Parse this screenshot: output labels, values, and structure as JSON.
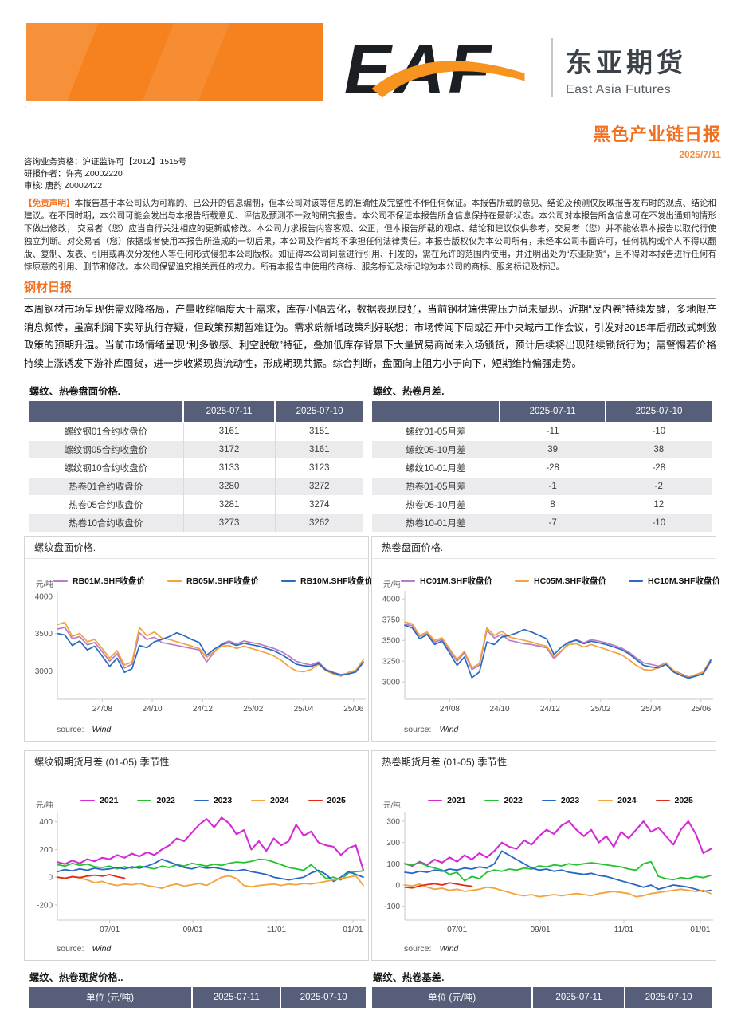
{
  "labels": {
    "source": "source:",
    "source_value": "Wind"
  },
  "colors": {
    "accent_orange": "#f26f20",
    "header_block_orange": "#f5821f",
    "table_header": "#565e7a",
    "rb01": "#b77cc9",
    "rb05": "#f2a33c",
    "rb10": "#2a6bbf",
    "y2021": "#d42bd4",
    "y2022": "#22c32e",
    "y2023": "#2668c5",
    "y2024": "#f2a33c",
    "y2025": "#e82817"
  },
  "header": {
    "logo_text": "EAF",
    "brand_cn": "东亚期货",
    "brand_en": "East Asia Futures",
    "stray_dot": ".",
    "report_title": "黑色产业链日报",
    "report_date": "2025/7/11"
  },
  "meta": {
    "qualification": "咨询业务资格：沪证监许可【2012】1515号",
    "author": "研报作者：许亮 Z0002220",
    "reviewer": "审核: 唐韵 Z0002422"
  },
  "disclaimer": {
    "label": "【免责声明】",
    "text": "本报告基于本公司认为可靠的、已公开的信息编制，但本公司对该等信息的准确性及完整性不作任何保证。本报告所载的意见、结论及预测仅反映报告发布时的观点、结论和建议。在不同时期，本公司可能会发出与本报告所载意见、评估及预测不一致的研究报告。本公司不保证本报告所含信息保持在最新状态。本公司对本报告所含信息可在不发出通知的情形下做出修改， 交易者（您）应当自行关注相应的更新或修改。本公司力求报告内容客观、公正，但本报告所载的观点、结论和建议仅供参考，交易者（您）并不能依靠本报告以取代行使独立判断。对交易者（您）依据或者使用本报告所造成的一切后果，本公司及作者均不承担任何法律责任。本报告版权仅为本公司所有，未经本公司书面许可，任何机构或个人不得以翻版、复制、发表、引用或再次分发他人等任何形式侵犯本公司版权。如征得本公司同意进行引用、刊发的，需在允许的范围内使用，并注明出处为“东亚期货”，且不得对本报告进行任何有悖原意的引用、删节和修改。本公司保留追究相关责任的权力。所有本报告中使用的商标、服务标记及标记均为本公司的商标、服务标记及标记。"
  },
  "section": {
    "title": "钢材日报",
    "body": "本周钢材市场呈现供需双降格局，产量收缩幅度大于需求，库存小幅去化，数据表现良好，当前钢材端供需压力尚未显现。近期“反内卷”持续发酵，多地限产消息频传，虽高利润下实际执行存疑，但政策预期暂难证伪。需求端新增政策利好联想：市场传闻下周或召开中央城市工作会议，引发对2015年后棚改式刺激政策的预期升温。当前市场情绪呈现“利多敏感、利空脱敏”特征，叠加低库存背景下大量贸易商尚未入场锁货，预计后续将出现陆续锁货行为；需警惕若价格持续上涨诱发下游补库囤货，进一步收紧现货流动性，形成期现共振。综合判断，盘面向上阻力小于向下，短期维持偏强走势。"
  },
  "tables": {
    "price_table": {
      "title": "螺纹、热卷盘面价格.",
      "columns": [
        "",
        "2025-07-11",
        "2025-07-10"
      ],
      "rows": [
        [
          "螺纹钢01合约收盘价",
          "3161",
          "3151"
        ],
        [
          "螺纹钢05合约收盘价",
          "3172",
          "3161"
        ],
        [
          "螺纹钢10合约收盘价",
          "3133",
          "3123"
        ],
        [
          "热卷01合约收盘价",
          "3280",
          "3272"
        ],
        [
          "热卷05合约收盘价",
          "3281",
          "3274"
        ],
        [
          "热卷10合约收盘价",
          "3273",
          "3262"
        ]
      ]
    },
    "spread_table": {
      "title": "螺纹、热卷月差.",
      "columns": [
        "",
        "2025-07-11",
        "2025-07-10"
      ],
      "rows": [
        [
          "螺纹01-05月差",
          "-11",
          "-10"
        ],
        [
          "螺纹05-10月差",
          "39",
          "38"
        ],
        [
          "螺纹10-01月差",
          "-28",
          "-28"
        ],
        [
          "热卷01-05月差",
          "-1",
          "-2"
        ],
        [
          "热卷05-10月差",
          "8",
          "12"
        ],
        [
          "热卷10-01月差",
          "-7",
          "-10"
        ]
      ]
    },
    "spot_table": {
      "title": "螺纹、热卷现货价格..",
      "columns": [
        "单位 (元/吨)",
        "2025-07-11",
        "2025-07-10"
      ],
      "rows": []
    },
    "basis_table": {
      "title": "螺纹、热卷基差.",
      "columns": [
        "单位 (元/吨)",
        "2025-07-11",
        "2025-07-10"
      ],
      "rows": []
    }
  },
  "chart_data": [
    {
      "type": "line",
      "title": "螺纹盘面价格.",
      "ylabel": "元/吨",
      "ylim": [
        2620,
        4030
      ],
      "yticks": [
        3000,
        3500,
        4000
      ],
      "xticks": [
        {
          "label": "24/08",
          "pos": 0.147
        },
        {
          "label": "24/10",
          "pos": 0.31
        },
        {
          "label": "24/12",
          "pos": 0.475
        },
        {
          "label": "25/02",
          "pos": 0.64
        },
        {
          "label": "25/04",
          "pos": 0.805
        },
        {
          "label": "25/06",
          "pos": 0.968
        }
      ],
      "series": [
        {
          "name": "RB01M.SHF收盘价",
          "color": "#b77cc9",
          "width": 1.7,
          "values": [
            3560,
            3580,
            3430,
            3460,
            3350,
            3380,
            3260,
            3130,
            3230,
            3040,
            3090,
            3510,
            3420,
            3450,
            3380,
            3360,
            3340,
            3320,
            3300,
            3280,
            3120,
            3250,
            3360,
            3400,
            3360,
            3400,
            3380,
            3360,
            3330,
            3300,
            3260,
            3200,
            3130,
            3100,
            3080,
            3120,
            3020,
            2980,
            2950,
            2970,
            2990,
            3110
          ]
        },
        {
          "name": "RB05M.SHF收盘价",
          "color": "#f2a33c",
          "width": 1.7,
          "values": [
            3620,
            3650,
            3460,
            3500,
            3390,
            3420,
            3300,
            3170,
            3270,
            3080,
            3120,
            3580,
            3470,
            3520,
            3440,
            3420,
            3390,
            3360,
            3330,
            3300,
            3180,
            3260,
            3330,
            3340,
            3300,
            3330,
            3300,
            3270,
            3240,
            3200,
            3140,
            3060,
            3000,
            2990,
            3020,
            3090,
            3000,
            2960,
            2930,
            2980,
            3010,
            3150
          ]
        },
        {
          "name": "RB10M.SHF收盘价",
          "color": "#2a6bbf",
          "width": 1.7,
          "values": [
            3500,
            3480,
            3340,
            3400,
            3280,
            3330,
            3200,
            3060,
            3170,
            2980,
            3030,
            3340,
            3310,
            3390,
            3420,
            3460,
            3510,
            3470,
            3420,
            3380,
            3210,
            3290,
            3350,
            3380,
            3340,
            3370,
            3350,
            3330,
            3300,
            3270,
            3220,
            3160,
            3090,
            3070,
            3060,
            3100,
            3010,
            2975,
            2945,
            2960,
            2985,
            3120
          ]
        }
      ]
    },
    {
      "type": "line",
      "title": "热卷盘面价格.",
      "ylabel": "元/吨",
      "ylim": [
        2790,
        4060
      ],
      "yticks": [
        3000,
        3250,
        3500,
        3750,
        4000
      ],
      "xticks": [
        {
          "label": "24/08",
          "pos": 0.147
        },
        {
          "label": "24/10",
          "pos": 0.31
        },
        {
          "label": "24/12",
          "pos": 0.475
        },
        {
          "label": "25/02",
          "pos": 0.64
        },
        {
          "label": "25/04",
          "pos": 0.805
        },
        {
          "label": "25/06",
          "pos": 0.968
        }
      ],
      "series": [
        {
          "name": "HC01M.SHF收盘价",
          "color": "#b77cc9",
          "width": 1.7,
          "values": [
            3690,
            3680,
            3550,
            3580,
            3480,
            3510,
            3380,
            3250,
            3350,
            3150,
            3200,
            3620,
            3530,
            3570,
            3500,
            3480,
            3460,
            3450,
            3430,
            3410,
            3280,
            3370,
            3470,
            3510,
            3470,
            3510,
            3490,
            3470,
            3440,
            3410,
            3360,
            3290,
            3230,
            3210,
            3190,
            3230,
            3140,
            3100,
            3060,
            3080,
            3100,
            3240
          ]
        },
        {
          "name": "HC05M.SHF收盘价",
          "color": "#f2a33c",
          "width": 1.7,
          "values": [
            3720,
            3700,
            3560,
            3600,
            3500,
            3530,
            3400,
            3270,
            3370,
            3170,
            3220,
            3650,
            3560,
            3610,
            3540,
            3520,
            3500,
            3480,
            3450,
            3430,
            3300,
            3380,
            3450,
            3460,
            3420,
            3450,
            3420,
            3390,
            3360,
            3330,
            3270,
            3200,
            3150,
            3140,
            3170,
            3230,
            3140,
            3090,
            3050,
            3090,
            3120,
            3270
          ]
        },
        {
          "name": "HC10M.SHF收盘价",
          "color": "#2a6bbf",
          "width": 1.7,
          "values": [
            3680,
            3650,
            3520,
            3570,
            3450,
            3490,
            3350,
            3200,
            3300,
            3050,
            3120,
            3480,
            3450,
            3540,
            3560,
            3590,
            3630,
            3600,
            3560,
            3520,
            3330,
            3420,
            3480,
            3500,
            3460,
            3490,
            3470,
            3450,
            3420,
            3390,
            3340,
            3270,
            3200,
            3180,
            3170,
            3210,
            3120,
            3080,
            3045,
            3070,
            3100,
            3260
          ]
        }
      ]
    },
    {
      "type": "line",
      "title": "螺纹钢期货月差 (01-05) 季节性.",
      "ylabel": "元/吨",
      "ylim": [
        -310,
        450
      ],
      "yticks": [
        -200,
        0,
        200,
        400
      ],
      "xticks": [
        {
          "label": "07/01",
          "pos": 0.171
        },
        {
          "label": "09/01",
          "pos": 0.443
        },
        {
          "label": "11/01",
          "pos": 0.716
        },
        {
          "label": "01/01",
          "pos": 0.966
        }
      ],
      "series": [
        {
          "name": "2021",
          "color": "#d42bd4",
          "width": 2.1,
          "values": [
            110,
            95,
            120,
            100,
            130,
            115,
            140,
            130,
            160,
            140,
            170,
            150,
            180,
            160,
            200,
            230,
            280,
            260,
            320,
            380,
            420,
            360,
            430,
            390,
            310,
            340,
            200,
            260,
            190,
            280,
            230,
            260,
            380,
            300,
            330,
            250,
            230,
            220,
            160,
            210,
            230,
            50
          ]
        },
        {
          "name": "2022",
          "color": "#22c32e",
          "width": 1.8,
          "values": [
            90,
            80,
            100,
            85,
            95,
            75,
            70,
            80,
            60,
            75,
            65,
            80,
            70,
            60,
            80,
            70,
            90,
            80,
            100,
            90,
            80,
            95,
            85,
            100,
            110,
            105,
            115,
            130,
            125,
            110,
            90,
            70,
            60,
            50,
            90,
            40,
            -10,
            0,
            -20,
            30,
            40,
            45
          ]
        },
        {
          "name": "2023",
          "color": "#2668c5",
          "width": 1.8,
          "values": [
            40,
            55,
            45,
            60,
            50,
            65,
            55,
            60,
            70,
            60,
            75,
            65,
            80,
            100,
            130,
            110,
            90,
            70,
            60,
            75,
            65,
            70,
            60,
            50,
            45,
            55,
            40,
            30,
            20,
            0,
            -10,
            -20,
            -10,
            0,
            30,
            50,
            20,
            -30,
            0,
            40,
            20,
            0
          ]
        },
        {
          "name": "2024",
          "color": "#f2a33c",
          "width": 1.8,
          "values": [
            0,
            -10,
            5,
            -5,
            -20,
            -40,
            -30,
            -50,
            -60,
            -50,
            -55,
            -45,
            -60,
            -70,
            -80,
            -60,
            -50,
            -65,
            -55,
            -45,
            -60,
            -30,
            0,
            10,
            -10,
            -60,
            -70,
            -60,
            -55,
            -50,
            -60,
            -50,
            -55,
            -45,
            -50,
            -40,
            -30,
            -20,
            -10,
            0,
            10,
            -60
          ]
        },
        {
          "name": "2025",
          "color": "#e82817",
          "width": 1.8,
          "x_range": [
            0,
            0.22
          ],
          "values": [
            0,
            -8,
            3,
            -3,
            8,
            15,
            8,
            18,
            3,
            -8
          ]
        }
      ]
    },
    {
      "type": "line",
      "title": "热卷期货月差 (01-05) 季节性.",
      "ylabel": "元/吨",
      "ylim": [
        -165,
        330
      ],
      "yticks": [
        -100,
        0,
        100,
        200,
        300
      ],
      "xticks": [
        {
          "label": "07/01",
          "pos": 0.171
        },
        {
          "label": "09/01",
          "pos": 0.443
        },
        {
          "label": "11/01",
          "pos": 0.716
        },
        {
          "label": "01/01",
          "pos": 0.966
        }
      ],
      "series": [
        {
          "name": "2021",
          "color": "#d42bd4",
          "width": 2.1,
          "values": [
            100,
            90,
            110,
            95,
            120,
            105,
            130,
            110,
            140,
            120,
            150,
            130,
            160,
            200,
            180,
            170,
            210,
            190,
            230,
            260,
            240,
            280,
            300,
            260,
            230,
            260,
            200,
            230,
            180,
            250,
            220,
            260,
            300,
            250,
            270,
            230,
            190,
            260,
            300,
            240,
            150,
            170
          ]
        },
        {
          "name": "2022",
          "color": "#22c32e",
          "width": 1.8,
          "values": [
            100,
            95,
            105,
            90,
            80,
            70,
            50,
            60,
            20,
            40,
            30,
            60,
            70,
            65,
            75,
            70,
            80,
            75,
            90,
            85,
            95,
            90,
            100,
            95,
            100,
            105,
            100,
            95,
            90,
            85,
            75,
            70,
            100,
            110,
            40,
            30,
            25,
            35,
            30,
            40,
            35,
            45
          ]
        },
        {
          "name": "2023",
          "color": "#2668c5",
          "width": 1.8,
          "values": [
            60,
            55,
            65,
            60,
            70,
            65,
            75,
            70,
            80,
            75,
            85,
            80,
            100,
            160,
            140,
            120,
            100,
            80,
            70,
            75,
            65,
            70,
            60,
            55,
            50,
            55,
            45,
            40,
            30,
            20,
            10,
            0,
            -10,
            0,
            -20,
            -10,
            0,
            -5,
            -10,
            -20,
            -30,
            -25
          ]
        },
        {
          "name": "2024",
          "color": "#f2a33c",
          "width": 1.8,
          "values": [
            0,
            -5,
            5,
            -10,
            -20,
            -15,
            -25,
            -20,
            -30,
            -25,
            -20,
            -10,
            -15,
            -25,
            -35,
            -45,
            -50,
            -45,
            -55,
            -50,
            -45,
            -50,
            -45,
            -40,
            -45,
            -50,
            -40,
            -35,
            -30,
            -35,
            -40,
            -55,
            -50,
            -40,
            -35,
            -30,
            -25,
            -20,
            -25,
            -30,
            -25,
            -40
          ]
        },
        {
          "name": "2025",
          "color": "#e82817",
          "width": 1.8,
          "x_range": [
            0,
            0.22
          ],
          "values": [
            -10,
            -14,
            -4,
            2,
            6,
            0,
            10,
            4,
            -2,
            -6
          ]
        }
      ]
    }
  ]
}
